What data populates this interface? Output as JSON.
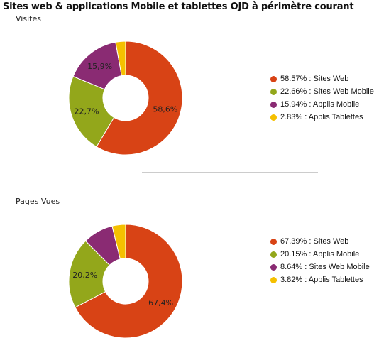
{
  "page": {
    "title": "Sites web & applications Mobile et tablettes OJD à périmètre courant"
  },
  "chart_data": [
    {
      "type": "pie",
      "title": "Visites",
      "slices": [
        {
          "name": "Sites Web",
          "value": 58.57,
          "label": "58,6%",
          "legend": "58.57% : Sites Web",
          "color": "#d84315"
        },
        {
          "name": "Sites Web Mobile",
          "value": 22.66,
          "label": "22,7%",
          "legend": "22.66% : Sites Web Mobile",
          "color": "#93a71b"
        },
        {
          "name": "Applis Mobile",
          "value": 15.94,
          "label": "15,9%",
          "legend": "15.94% : Applis Mobile",
          "color": "#8a2b73"
        },
        {
          "name": "Applis Tablettes",
          "value": 2.83,
          "label": "",
          "legend": "2.83% : Applis Tablettes",
          "color": "#f5c000"
        }
      ]
    },
    {
      "type": "pie",
      "title": "Pages Vues",
      "slices": [
        {
          "name": "Sites Web",
          "value": 67.39,
          "label": "67,4%",
          "legend": "67.39% : Sites Web",
          "color": "#d84315"
        },
        {
          "name": "Applis Mobile",
          "value": 20.15,
          "label": "20,2%",
          "legend": "20.15% : Applis Mobile",
          "color": "#93a71b"
        },
        {
          "name": "Sites Web Mobile",
          "value": 8.64,
          "label": "",
          "legend": "8.64% : Sites Web Mobile",
          "color": "#8a2b73"
        },
        {
          "name": "Applis Tablettes",
          "value": 3.82,
          "label": "",
          "legend": "3.82% : Applis Tablettes",
          "color": "#f5c000"
        }
      ]
    }
  ]
}
